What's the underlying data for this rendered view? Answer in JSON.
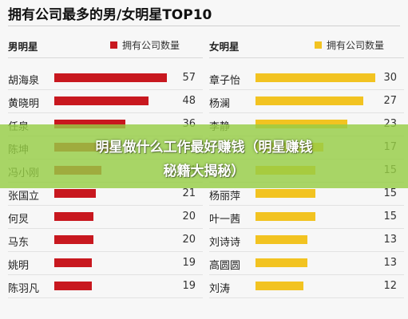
{
  "title": "拥有公司最多的男/女明星TOP10",
  "banner": {
    "line1": "明星做什么工作最好赚钱（明星赚钱",
    "line2": "秘籍大揭秘）"
  },
  "colors": {
    "male_bar": "#c8181f",
    "female_bar": "#f2c321",
    "banner": "#96cd46"
  },
  "chart_data": [
    {
      "type": "bar",
      "orientation": "horizontal",
      "title": "男明星",
      "legend": "拥有公司数量",
      "categories": [
        "胡海泉",
        "黄晓明",
        "任泉",
        "陈坤",
        "冯小刚",
        "张国立",
        "何炅",
        "马东",
        "姚明",
        "陈羽凡"
      ],
      "values": [
        57,
        48,
        36,
        30,
        24,
        21,
        20,
        20,
        19,
        19
      ],
      "xlim": [
        0,
        60
      ],
      "color": "#c8181f"
    },
    {
      "type": "bar",
      "orientation": "horizontal",
      "title": "女明星",
      "legend": "拥有公司数量",
      "categories": [
        "章子怡",
        "杨澜",
        "李静",
        "",
        "",
        "杨丽萍",
        "叶一茜",
        "刘诗诗",
        "高圆圆",
        "刘涛"
      ],
      "values": [
        30,
        27,
        23,
        17,
        15,
        15,
        15,
        13,
        13,
        12
      ],
      "xlim": [
        0,
        32
      ],
      "color": "#f2c321"
    }
  ]
}
